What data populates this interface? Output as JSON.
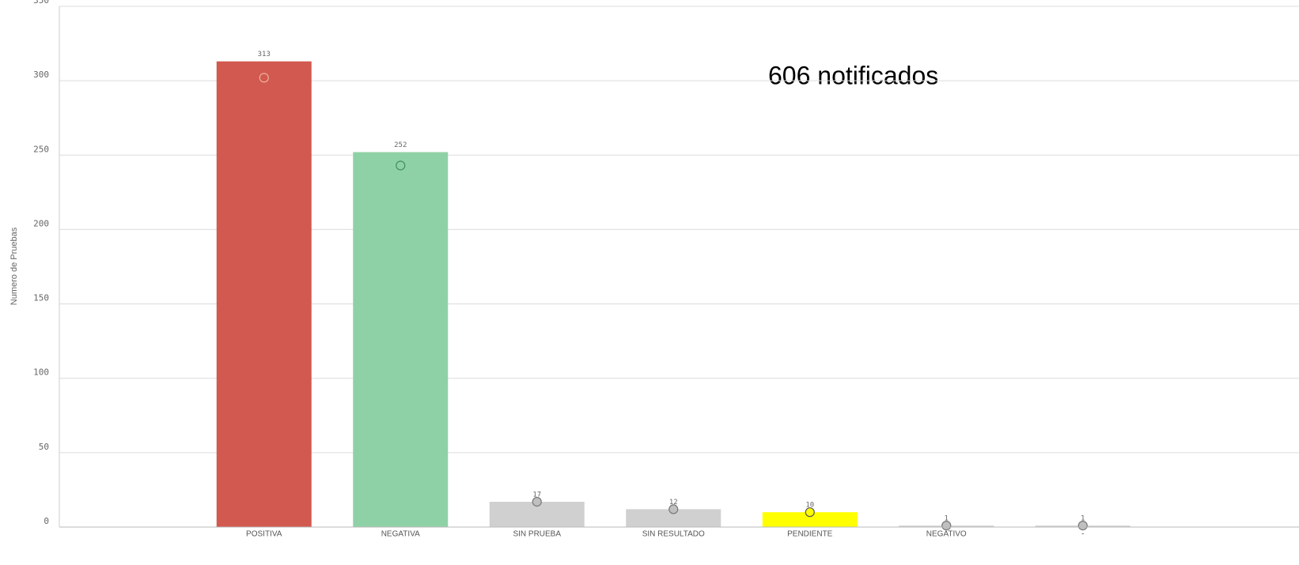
{
  "chart_data": {
    "type": "bar",
    "ylabel": "Numero de Pruebas",
    "annotation": "606 notificados",
    "categories": [
      "POSITIVA",
      "NEGATIVA",
      "SIN PRUEBA",
      "SIN RESULTADO",
      "PENDIENTE",
      "NEGATIVO",
      "-"
    ],
    "series": [
      {
        "colors": [
          "#d1594f",
          "#8fd1a6",
          "#d0d0d0",
          "#d0d0d0",
          "#ffff00",
          "#d0d0d0",
          "#d0d0d0"
        ],
        "values": [
          313,
          252,
          17,
          12,
          10,
          1,
          1
        ]
      },
      {
        "type": "marker",
        "colors": [
          "#d1594f",
          "#8fd1a6",
          "#c0c0c0",
          "#c0c0c0",
          "#ffff00",
          "#c0c0c0",
          "#c0c0c0"
        ],
        "edgecolors": [
          "#f0b0a0",
          "#3f8f5f",
          "#777777",
          "#777777",
          "#555555",
          "#777777",
          "#777777"
        ],
        "values": [
          302,
          243,
          17,
          12,
          10,
          1,
          1
        ]
      }
    ],
    "ylim": [
      0,
      350
    ],
    "yticks": [
      0,
      50,
      100,
      150,
      200,
      250,
      300,
      350
    ],
    "grid": true
  }
}
